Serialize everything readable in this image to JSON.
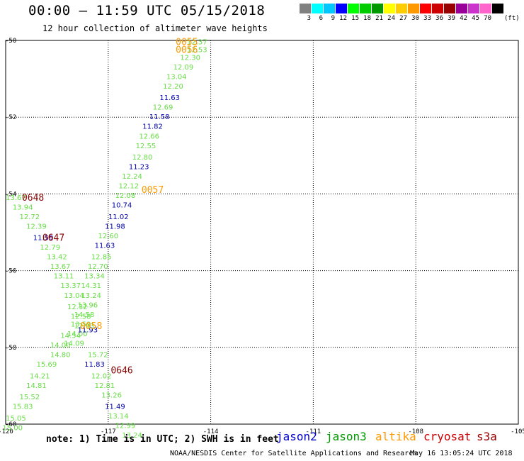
{
  "header": {
    "title": "00:00 – 11:59 UTC 05/15/2018",
    "subtitle": "12 hour collection of altimeter wave heights"
  },
  "scale": {
    "colors": [
      "#808080",
      "#00ffff",
      "#00c8ff",
      "#0000ff",
      "#00ff00",
      "#00cc00",
      "#009900",
      "#ffff00",
      "#ffcc00",
      "#ff9900",
      "#ff0000",
      "#cc0000",
      "#990000",
      "#990099",
      "#cc33cc",
      "#ff66cc",
      "#000000"
    ],
    "labels": [
      "3",
      "6",
      "9",
      "12",
      "15",
      "18",
      "21",
      "24",
      "27",
      "30",
      "33",
      "36",
      "39",
      "42",
      "45",
      "70"
    ],
    "unit": "(ft)"
  },
  "map_colors": {
    "jason2": "#0000cc",
    "jason3": "#009900",
    "altika": "#ff9900",
    "cryosat": "#cc0000",
    "s3a": "#990000",
    "green_point": "#66dd44",
    "blue_point": "#0000aa",
    "orange_label": "#ff9900",
    "maroon_label": "#880000",
    "grid": "#000000"
  },
  "chart_data": {
    "type": "scatter",
    "xlim": [
      -120,
      -105
    ],
    "ylim": [
      -60,
      -50
    ],
    "x_ticks": [
      "-120",
      "-117",
      "-114",
      "-111",
      "-108",
      "-105"
    ],
    "y_ticks": [
      "-50",
      "-52",
      "-54",
      "-56",
      "-58",
      "-60"
    ],
    "tracks": [
      {
        "name": "0055",
        "color": "#ff9900",
        "label_at": [
          -114.7,
          -50.05
        ]
      },
      {
        "name": "0056",
        "color": "#ff9900",
        "label_at": [
          -114.7,
          -50.25
        ]
      },
      {
        "name": "0057",
        "color": "#ff9900",
        "label_at": [
          -115.7,
          -53.9
        ]
      },
      {
        "name": "0058",
        "color": "#ff9900",
        "label_at": [
          -117.5,
          -57.45
        ]
      },
      {
        "name": "0646",
        "color": "#880000",
        "label_at": [
          -116.6,
          -58.6
        ]
      },
      {
        "name": "0647",
        "color": "#880000",
        "label_at": [
          -118.6,
          -55.15
        ]
      },
      {
        "name": "0648",
        "color": "#880000",
        "label_at": [
          -119.2,
          -54.1
        ]
      }
    ],
    "points": [
      {
        "lon": -114.4,
        "lat": -50.05,
        "v": "12.37",
        "c": "g"
      },
      {
        "lon": -114.4,
        "lat": -50.25,
        "v": "12.53",
        "c": "g"
      },
      {
        "lon": -114.6,
        "lat": -50.45,
        "v": "12.30",
        "c": "g"
      },
      {
        "lon": -114.8,
        "lat": -50.7,
        "v": "12.09",
        "c": "g"
      },
      {
        "lon": -115.0,
        "lat": -50.95,
        "v": "13.04",
        "c": "g"
      },
      {
        "lon": -115.1,
        "lat": -51.2,
        "v": "12.20",
        "c": "g"
      },
      {
        "lon": -115.2,
        "lat": -51.5,
        "v": "11.63",
        "c": "b"
      },
      {
        "lon": -115.4,
        "lat": -51.75,
        "v": "12.69",
        "c": "g"
      },
      {
        "lon": -115.5,
        "lat": -52.0,
        "v": "11.58",
        "c": "b"
      },
      {
        "lon": -115.7,
        "lat": -52.25,
        "v": "11.82",
        "c": "b"
      },
      {
        "lon": -115.8,
        "lat": -52.5,
        "v": "12.66",
        "c": "g"
      },
      {
        "lon": -115.9,
        "lat": -52.75,
        "v": "12.55",
        "c": "g"
      },
      {
        "lon": -116.0,
        "lat": -53.05,
        "v": "12.80",
        "c": "g"
      },
      {
        "lon": -116.1,
        "lat": -53.3,
        "v": "11.23",
        "c": "b"
      },
      {
        "lon": -116.3,
        "lat": -53.55,
        "v": "12.24",
        "c": "g"
      },
      {
        "lon": -116.4,
        "lat": -53.8,
        "v": "12.12",
        "c": "g"
      },
      {
        "lon": -116.5,
        "lat": -54.05,
        "v": "12.08",
        "c": "g"
      },
      {
        "lon": -116.6,
        "lat": -54.3,
        "v": "10.74",
        "c": "b"
      },
      {
        "lon": -116.7,
        "lat": -54.6,
        "v": "11.02",
        "c": "b"
      },
      {
        "lon": -116.8,
        "lat": -54.85,
        "v": "11.98",
        "c": "b"
      },
      {
        "lon": -117.0,
        "lat": -55.1,
        "v": "12.60",
        "c": "g"
      },
      {
        "lon": -117.1,
        "lat": -55.35,
        "v": "11.63",
        "c": "b"
      },
      {
        "lon": -117.2,
        "lat": -55.65,
        "v": "12.85",
        "c": "g"
      },
      {
        "lon": -117.3,
        "lat": -55.9,
        "v": "12.70",
        "c": "g"
      },
      {
        "lon": -117.4,
        "lat": -56.15,
        "v": "13.34",
        "c": "g"
      },
      {
        "lon": -117.5,
        "lat": -56.4,
        "v": "14.31",
        "c": "g"
      },
      {
        "lon": -117.5,
        "lat": -56.65,
        "v": "13.24",
        "c": "g"
      },
      {
        "lon": -117.6,
        "lat": -56.9,
        "v": "13.96",
        "c": "g"
      },
      {
        "lon": -117.7,
        "lat": -57.15,
        "v": "14.58",
        "c": "g"
      },
      {
        "lon": -117.8,
        "lat": -57.4,
        "v": "13.59",
        "c": "g"
      },
      {
        "lon": -117.9,
        "lat": -57.65,
        "v": "14.00",
        "c": "g"
      },
      {
        "lon": -118.0,
        "lat": -57.9,
        "v": "14.09",
        "c": "g"
      },
      {
        "lon": -117.3,
        "lat": -58.2,
        "v": "15.72",
        "c": "g"
      },
      {
        "lon": -117.4,
        "lat": -58.45,
        "v": "11.83",
        "c": "b"
      },
      {
        "lon": -117.2,
        "lat": -58.75,
        "v": "12.02",
        "c": "g"
      },
      {
        "lon": -117.1,
        "lat": -59.0,
        "v": "12.81",
        "c": "g"
      },
      {
        "lon": -116.9,
        "lat": -59.25,
        "v": "13.26",
        "c": "g"
      },
      {
        "lon": -116.8,
        "lat": -59.55,
        "v": "11.49",
        "c": "b"
      },
      {
        "lon": -116.7,
        "lat": -59.8,
        "v": "13.14",
        "c": "g"
      },
      {
        "lon": -116.5,
        "lat": -60.05,
        "v": "12.99",
        "c": "g"
      },
      {
        "lon": -116.3,
        "lat": -60.3,
        "v": "13.24",
        "c": "g"
      },
      {
        "lon": -119.7,
        "lat": -54.1,
        "v": "13.67",
        "c": "g"
      },
      {
        "lon": -119.5,
        "lat": -54.35,
        "v": "13.94",
        "c": "g"
      },
      {
        "lon": -119.3,
        "lat": -54.6,
        "v": "12.72",
        "c": "g"
      },
      {
        "lon": -119.1,
        "lat": -54.85,
        "v": "12.39",
        "c": "g"
      },
      {
        "lon": -118.9,
        "lat": -55.15,
        "v": "11.59",
        "c": "b"
      },
      {
        "lon": -118.7,
        "lat": -55.4,
        "v": "12.79",
        "c": "g"
      },
      {
        "lon": -118.5,
        "lat": -55.65,
        "v": "13.42",
        "c": "g"
      },
      {
        "lon": -118.4,
        "lat": -55.9,
        "v": "13.67",
        "c": "g"
      },
      {
        "lon": -118.3,
        "lat": -56.15,
        "v": "13.11",
        "c": "g"
      },
      {
        "lon": -118.1,
        "lat": -56.4,
        "v": "13.37",
        "c": "g"
      },
      {
        "lon": -118.0,
        "lat": -56.65,
        "v": "13.04",
        "c": "g"
      },
      {
        "lon": -117.9,
        "lat": -56.95,
        "v": "12.32",
        "c": "g"
      },
      {
        "lon": -117.8,
        "lat": -57.2,
        "v": "12.58",
        "c": "g"
      },
      {
        "lon": -117.7,
        "lat": -57.45,
        "v": "12.93",
        "c": "g"
      },
      {
        "lon": -117.6,
        "lat": -57.55,
        "v": "11.93",
        "c": "b"
      },
      {
        "lon": -118.1,
        "lat": -57.7,
        "v": "14.54",
        "c": "g"
      },
      {
        "lon": -118.4,
        "lat": -57.95,
        "v": "14.00",
        "c": "g"
      },
      {
        "lon": -118.4,
        "lat": -58.2,
        "v": "14.80",
        "c": "g"
      },
      {
        "lon": -118.8,
        "lat": -58.45,
        "v": "15.69",
        "c": "g"
      },
      {
        "lon": -119.0,
        "lat": -58.75,
        "v": "14.21",
        "c": "g"
      },
      {
        "lon": -119.1,
        "lat": -59.0,
        "v": "14.81",
        "c": "g"
      },
      {
        "lon": -119.3,
        "lat": -59.3,
        "v": "15.52",
        "c": "g"
      },
      {
        "lon": -119.5,
        "lat": -59.55,
        "v": "15.83",
        "c": "g"
      },
      {
        "lon": -119.7,
        "lat": -59.85,
        "v": "15.05",
        "c": "g"
      },
      {
        "lon": -119.8,
        "lat": -60.1,
        "v": "15.00",
        "c": "g"
      }
    ]
  },
  "footer": {
    "note": "note:  1) Time is in UTC; 2) SWH is in feet",
    "legend": [
      {
        "name": "jason2",
        "color": "#0000cc"
      },
      {
        "name": "jason3",
        "color": "#009900"
      },
      {
        "name": "altika",
        "color": "#ff9900"
      },
      {
        "name": "cryosat",
        "color": "#cc0000"
      },
      {
        "name": "s3a",
        "color": "#990000"
      }
    ],
    "credit": "NOAA/NESDIS Center for Satellite Applications and Research",
    "generated": "May 16 13:05:24 UTC 2018"
  }
}
